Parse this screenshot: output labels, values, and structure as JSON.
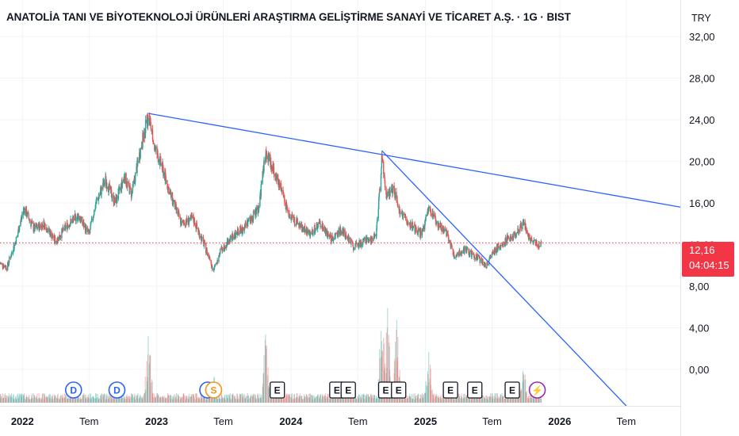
{
  "title": "ANATOLİA TANI VE BİYOTEKNOLOJİ ÜRÜNLERİ ARAŞTIRMA GELİŞTİRME SANAYİ VE TİCARET A.Ş. · 1G · BIST",
  "currency": "TRY",
  "last_price_label": "12,16",
  "countdown": "04:04:15",
  "colors": {
    "up": "#26a69a",
    "down": "#ef5350",
    "trendline": "#2962ff",
    "last_price": "#f23645",
    "grid": "#f0f3fa",
    "event_dividend": "#2962ff",
    "event_split": "#f7931a",
    "event_earnings": "#131722",
    "event_future": "#9c27b0"
  },
  "chart_data": {
    "type": "candlestick",
    "y_ticks": [
      "32,00",
      "28,00",
      "24,00",
      "20,00",
      "16,00",
      "12,00",
      "8,00",
      "4,00",
      "0,00"
    ],
    "y_tick_values": [
      32,
      28,
      24,
      20,
      16,
      12,
      8,
      4,
      0
    ],
    "ylim": [
      -3.5,
      35.5
    ],
    "x_ticks": [
      "2022",
      "Tem",
      "2023",
      "Tem",
      "2024",
      "Tem",
      "2025",
      "Tem",
      "2026",
      "Tem"
    ],
    "x_tick_dates": [
      "2022-01-01",
      "2022-07-01",
      "2023-01-01",
      "2023-07-01",
      "2024-01-01",
      "2024-07-01",
      "2025-01-01",
      "2025-07-01",
      "2026-01-01",
      "2026-07-01"
    ],
    "xlim": [
      "2021-11-01",
      "2026-11-25"
    ],
    "last_price": 12.16,
    "price_path": [
      {
        "date": "2021-11-01",
        "close": 10.2
      },
      {
        "date": "2021-11-20",
        "close": 9.8
      },
      {
        "date": "2021-12-15",
        "close": 12.5
      },
      {
        "date": "2022-01-05",
        "close": 15.5
      },
      {
        "date": "2022-02-01",
        "close": 13.5
      },
      {
        "date": "2022-03-01",
        "close": 14.0
      },
      {
        "date": "2022-04-01",
        "close": 12.3
      },
      {
        "date": "2022-05-01",
        "close": 13.8
      },
      {
        "date": "2022-06-01",
        "close": 14.8
      },
      {
        "date": "2022-07-01",
        "close": 13.0
      },
      {
        "date": "2022-07-20",
        "close": 16.0
      },
      {
        "date": "2022-08-15",
        "close": 18.2
      },
      {
        "date": "2022-09-10",
        "close": 16.0
      },
      {
        "date": "2022-10-05",
        "close": 18.5
      },
      {
        "date": "2022-10-25",
        "close": 16.8
      },
      {
        "date": "2022-11-20",
        "close": 21.5
      },
      {
        "date": "2022-12-10",
        "close": 24.5
      },
      {
        "date": "2022-12-25",
        "close": 21.5
      },
      {
        "date": "2023-01-15",
        "close": 19.5
      },
      {
        "date": "2023-02-10",
        "close": 16.5
      },
      {
        "date": "2023-03-10",
        "close": 14.0
      },
      {
        "date": "2023-04-10",
        "close": 14.5
      },
      {
        "date": "2023-05-10",
        "close": 12.0
      },
      {
        "date": "2023-06-05",
        "close": 9.5
      },
      {
        "date": "2023-06-25",
        "close": 11.5
      },
      {
        "date": "2023-07-20",
        "close": 12.5
      },
      {
        "date": "2023-08-20",
        "close": 13.5
      },
      {
        "date": "2023-09-15",
        "close": 14.5
      },
      {
        "date": "2023-10-05",
        "close": 15.5
      },
      {
        "date": "2023-10-25",
        "close": 21.0
      },
      {
        "date": "2023-11-15",
        "close": 19.0
      },
      {
        "date": "2023-12-05",
        "close": 17.5
      },
      {
        "date": "2023-12-25",
        "close": 15.0
      },
      {
        "date": "2024-01-20",
        "close": 14.0
      },
      {
        "date": "2024-02-20",
        "close": 13.0
      },
      {
        "date": "2024-03-20",
        "close": 14.0
      },
      {
        "date": "2024-04-20",
        "close": 12.5
      },
      {
        "date": "2024-05-20",
        "close": 13.5
      },
      {
        "date": "2024-06-20",
        "close": 11.8
      },
      {
        "date": "2024-07-20",
        "close": 12.3
      },
      {
        "date": "2024-08-20",
        "close": 12.8
      },
      {
        "date": "2024-09-05",
        "close": 20.5
      },
      {
        "date": "2024-09-15",
        "close": 16.5
      },
      {
        "date": "2024-10-05",
        "close": 17.5
      },
      {
        "date": "2024-10-25",
        "close": 15.0
      },
      {
        "date": "2024-11-20",
        "close": 14.0
      },
      {
        "date": "2024-12-20",
        "close": 13.0
      },
      {
        "date": "2025-01-10",
        "close": 15.5
      },
      {
        "date": "2025-02-01",
        "close": 14.0
      },
      {
        "date": "2025-03-01",
        "close": 13.0
      },
      {
        "date": "2025-03-20",
        "close": 11.0
      },
      {
        "date": "2025-04-20",
        "close": 11.5
      },
      {
        "date": "2025-05-20",
        "close": 10.8
      },
      {
        "date": "2025-06-15",
        "close": 10.0
      },
      {
        "date": "2025-07-10",
        "close": 11.5
      },
      {
        "date": "2025-08-10",
        "close": 12.5
      },
      {
        "date": "2025-09-05",
        "close": 13.0
      },
      {
        "date": "2025-09-25",
        "close": 14.2
      },
      {
        "date": "2025-10-10",
        "close": 12.5
      },
      {
        "date": "2025-11-01",
        "close": 12.0
      },
      {
        "date": "2025-11-12",
        "close": 12.16
      }
    ],
    "volume_spikes": [
      {
        "date": "2022-12-10",
        "volume": 0.7
      },
      {
        "date": "2023-06-05",
        "volume": 0.3
      },
      {
        "date": "2023-10-25",
        "volume": 0.7
      },
      {
        "date": "2024-09-05",
        "volume": 1.0
      },
      {
        "date": "2024-09-20",
        "volume": 0.9
      },
      {
        "date": "2024-10-15",
        "volume": 0.8
      },
      {
        "date": "2025-01-10",
        "volume": 0.5
      },
      {
        "date": "2025-09-25",
        "volume": 0.4
      }
    ],
    "trendlines": [
      {
        "from": {
          "date": "2022-12-10",
          "price": 24.6
        },
        "to": {
          "date": "2026-11-25",
          "price": 15.6
        }
      },
      {
        "from": {
          "date": "2024-09-05",
          "price": 21.0
        },
        "to": {
          "date": "2026-07-01",
          "price": -3.5
        }
      }
    ],
    "events": [
      {
        "label": "D",
        "kind": "dividend",
        "date": "2022-05-20"
      },
      {
        "label": "D",
        "kind": "dividend",
        "date": "2022-09-15"
      },
      {
        "label": "",
        "kind": "dividend",
        "date": "2023-05-20"
      },
      {
        "label": "S",
        "kind": "split",
        "date": "2023-06-05"
      },
      {
        "label": "E",
        "kind": "earnings",
        "date": "2023-11-25"
      },
      {
        "label": "E",
        "kind": "earnings",
        "date": "2024-05-05"
      },
      {
        "label": "E",
        "kind": "earnings",
        "date": "2024-06-05"
      },
      {
        "label": "E",
        "kind": "earnings",
        "date": "2024-09-15"
      },
      {
        "label": "E",
        "kind": "earnings",
        "date": "2024-10-20"
      },
      {
        "label": "E",
        "kind": "earnings",
        "date": "2025-03-10"
      },
      {
        "label": "E",
        "kind": "earnings",
        "date": "2025-05-15"
      },
      {
        "label": "E",
        "kind": "earnings",
        "date": "2025-08-25"
      },
      {
        "label": "⚡",
        "kind": "future",
        "date": "2025-11-01"
      }
    ]
  }
}
